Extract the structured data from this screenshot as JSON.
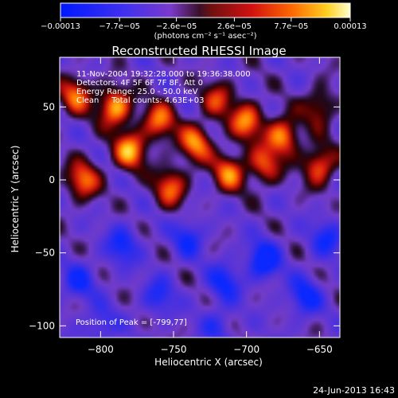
{
  "colorbar": {
    "tick_labels": [
      "−0.00013",
      "−7.7e−05",
      "−2.6e−05",
      "2.6e−05",
      "7.7e−05",
      "0.00013"
    ],
    "tick_values": [
      -0.00013,
      -7.7e-05,
      -2.6e-05,
      2.6e-05,
      7.7e-05,
      0.00013
    ],
    "range": [
      -0.00013,
      0.00013
    ],
    "unit_label": "(photons cm⁻² s⁻¹ asec⁻²)",
    "colors": [
      "#0018ff",
      "#6a2ad8",
      "#7a3acc",
      "#8d1e2a",
      "#d21010",
      "#ff6a00",
      "#ffd020",
      "#ffffc0"
    ]
  },
  "annotations": {
    "line1": "11-Nov-2004 19:32:28.000 to 19:36:38.000",
    "line2": "Detectors: 4F 5F 6F 7F 8F, Att 0",
    "line3": "Energy Range: 25.0 - 50.0 keV",
    "line4": "Clean     Total counts: 4.63E+03",
    "peak": "Position of Peak = [-799,77]"
  },
  "footer": {
    "timestamp": "24-Jun-2013 16:43"
  },
  "chart_data": {
    "type": "heatmap",
    "title": "Reconstructed RHESSI Image",
    "xlabel": "Heliocentric X (arcsec)",
    "ylabel": "Heliocentric Y (arcsec)",
    "xlim": [
      -828,
      -636
    ],
    "ylim": [
      -108,
      84
    ],
    "xticks": [
      -800,
      -750,
      -700,
      -650
    ],
    "xtick_labels": [
      "−800",
      "−750",
      "−700",
      "−650"
    ],
    "yticks": [
      -100,
      -50,
      0,
      50
    ],
    "ytick_labels": [
      "−100",
      "−50",
      "0",
      "50"
    ],
    "grid": false,
    "colormap": "diverging blue-purple-red-yellow",
    "peak_position": [
      -799,
      77
    ],
    "hot_regions": [
      {
        "x": -817,
        "y": 58,
        "z": 0.75
      },
      {
        "x": -812,
        "y": 0,
        "z": 0.8
      },
      {
        "x": -790,
        "y": 50,
        "z": 1.0
      },
      {
        "x": -780,
        "y": 20,
        "z": 0.95
      },
      {
        "x": -760,
        "y": 40,
        "z": 0.8
      },
      {
        "x": -752,
        "y": -5,
        "z": 0.75
      },
      {
        "x": -735,
        "y": 25,
        "z": 0.85
      },
      {
        "x": -720,
        "y": 55,
        "z": 0.6
      },
      {
        "x": -712,
        "y": 5,
        "z": 0.8
      },
      {
        "x": -700,
        "y": 40,
        "z": 0.85
      },
      {
        "x": -688,
        "y": 10,
        "z": 0.7
      },
      {
        "x": -675,
        "y": 30,
        "z": 0.9
      },
      {
        "x": -650,
        "y": 10,
        "z": 0.8
      },
      {
        "x": -650,
        "y": 50,
        "z": 0.55
      }
    ],
    "cold_regions": [
      {
        "x": -815,
        "y": -70,
        "z": -0.55
      },
      {
        "x": -785,
        "y": -45,
        "z": -0.6
      },
      {
        "x": -760,
        "y": -80,
        "z": -0.5
      },
      {
        "x": -740,
        "y": -40,
        "z": -0.55
      },
      {
        "x": -715,
        "y": -70,
        "z": -0.6
      },
      {
        "x": -688,
        "y": -55,
        "z": -0.85
      },
      {
        "x": -660,
        "y": -80,
        "z": -0.65
      },
      {
        "x": -645,
        "y": -40,
        "z": -0.55
      },
      {
        "x": -800,
        "y": -100,
        "z": -0.45
      },
      {
        "x": -720,
        "y": -100,
        "z": -0.4
      }
    ]
  }
}
